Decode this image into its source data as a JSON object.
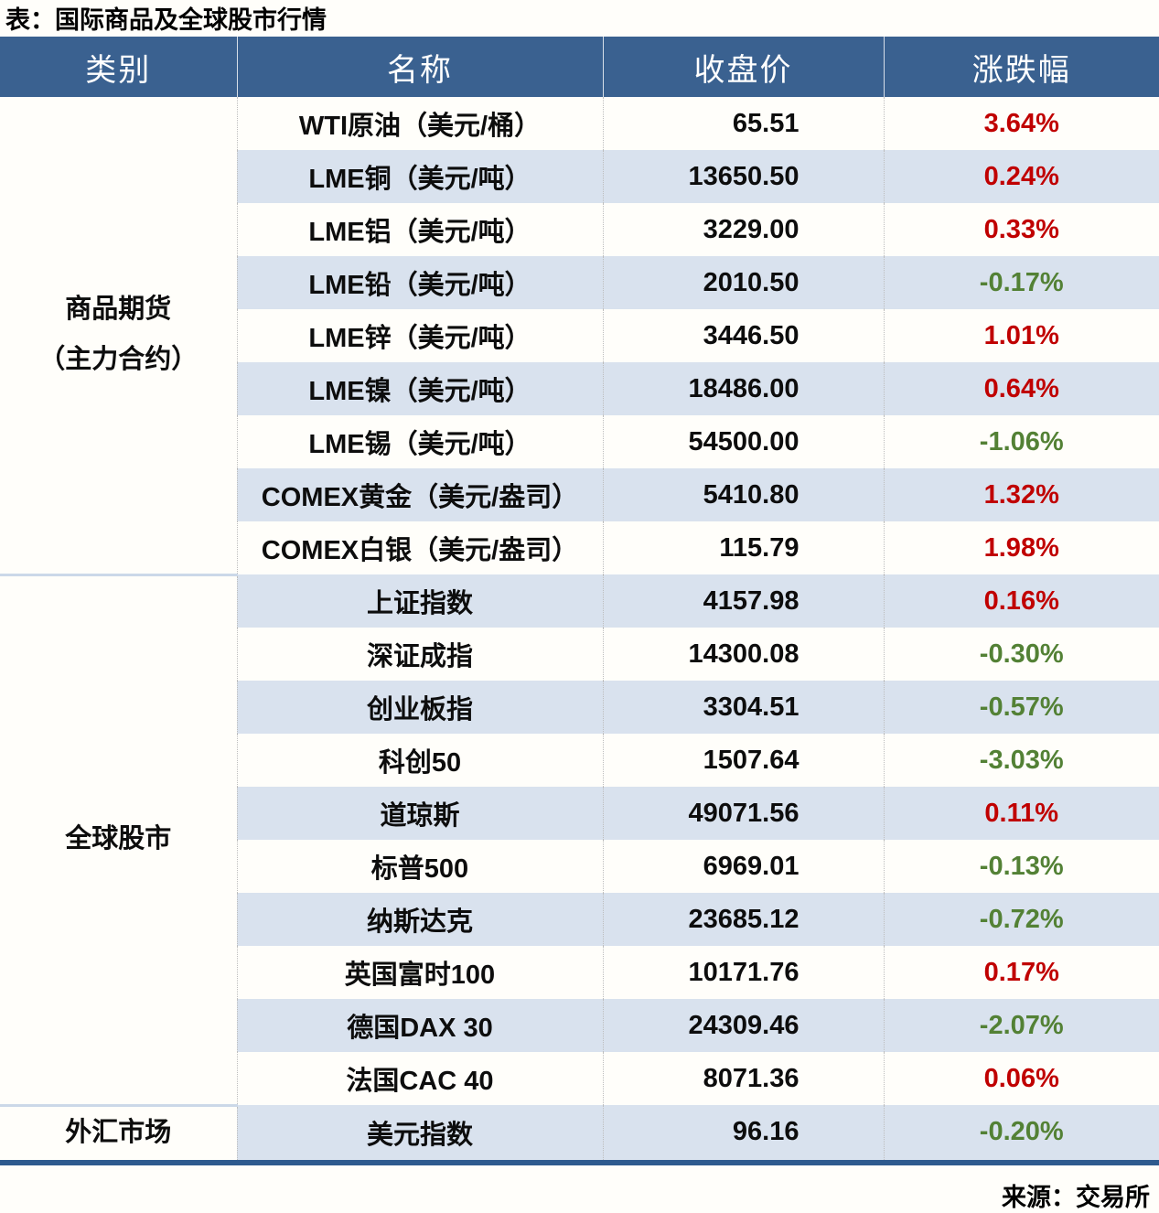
{
  "chart_data": {
    "type": "table",
    "title": "表：国际商品及全球股市行情",
    "columns": [
      "类别",
      "名称",
      "收盘价",
      "涨跌幅"
    ],
    "groups": [
      {
        "category_lines": [
          "商品期货",
          "（主力合约）"
        ],
        "rows": [
          [
            "WTI原油（美元/桶）",
            "65.51",
            "3.64%"
          ],
          [
            "LME铜（美元/吨）",
            "13650.50",
            "0.24%"
          ],
          [
            "LME铝（美元/吨）",
            "3229.00",
            "0.33%"
          ],
          [
            "LME铅（美元/吨）",
            "2010.50",
            "-0.17%"
          ],
          [
            "LME锌（美元/吨）",
            "3446.50",
            "1.01%"
          ],
          [
            "LME镍（美元/吨）",
            "18486.00",
            "0.64%"
          ],
          [
            "LME锡（美元/吨）",
            "54500.00",
            "-1.06%"
          ],
          [
            "COMEX黄金（美元/盎司）",
            "5410.80",
            "1.32%"
          ],
          [
            "COMEX白银（美元/盎司）",
            "115.79",
            "1.98%"
          ]
        ]
      },
      {
        "category_lines": [
          "全球股市"
        ],
        "rows": [
          [
            "上证指数",
            "4157.98",
            "0.16%"
          ],
          [
            "深证成指",
            "14300.08",
            "-0.30%"
          ],
          [
            "创业板指",
            "3304.51",
            "-0.57%"
          ],
          [
            "科创50",
            "1507.64",
            "-3.03%"
          ],
          [
            "道琼斯",
            "49071.56",
            "0.11%"
          ],
          [
            "标普500",
            "6969.01",
            "-0.13%"
          ],
          [
            "纳斯达克",
            "23685.12",
            "-0.72%"
          ],
          [
            "英国富时100",
            "10171.76",
            "0.17%"
          ],
          [
            "德国DAX 30",
            "24309.46",
            "-2.07%"
          ],
          [
            "法国CAC 40",
            "8071.36",
            "0.06%"
          ]
        ]
      },
      {
        "category_lines": [
          "外汇市场"
        ],
        "rows": [
          [
            "美元指数",
            "96.16",
            "-0.20%"
          ]
        ]
      }
    ],
    "source_note": "来源：交易所",
    "layout": {
      "grid": "alternating-row-stripes",
      "legend": "none"
    },
    "colors": {
      "header_bg": "#3a6190",
      "row_stripe": "#d9e2ee",
      "positive_change": "#c00000",
      "negative_change": "#538135",
      "bottom_border": "#2e5a8e"
    }
  }
}
